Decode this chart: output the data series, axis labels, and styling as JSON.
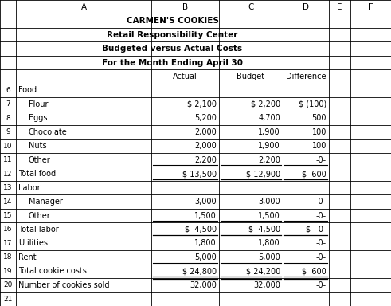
{
  "title_lines": [
    "CARMEN'S COOKIES",
    "Retail Responsibility Center",
    "Budgeted versus Actual Costs",
    "For the Month Ending April 30"
  ],
  "title_bold": [
    true,
    true,
    true,
    true
  ],
  "col_letters": [
    "",
    "A",
    "B",
    "C",
    "D",
    "E",
    "F"
  ],
  "col_header_row": [
    "",
    "Actual",
    "Budget",
    "Difference"
  ],
  "rows": [
    {
      "num": "6",
      "label": "Food",
      "actual": "",
      "budget": "",
      "diff": "",
      "indent": false,
      "total": false
    },
    {
      "num": "7",
      "label": "Flour",
      "actual": "$ 2,100",
      "budget": "$ 2,200",
      "diff": "$ (100)",
      "indent": true,
      "total": false
    },
    {
      "num": "8",
      "label": "Eggs",
      "actual": "5,200",
      "budget": "4,700",
      "diff": "500",
      "indent": true,
      "total": false
    },
    {
      "num": "9",
      "label": "Chocolate",
      "actual": "2,000",
      "budget": "1,900",
      "diff": "100",
      "indent": true,
      "total": false
    },
    {
      "num": "10",
      "label": "Nuts",
      "actual": "2,000",
      "budget": "1,900",
      "diff": "100",
      "indent": true,
      "total": false
    },
    {
      "num": "11",
      "label": "Other",
      "actual": "2,200",
      "budget": "2,200",
      "diff": "-0-",
      "indent": true,
      "total": false,
      "underline_val": true
    },
    {
      "num": "12",
      "label": "Total food",
      "actual": "$ 13,500",
      "budget": "$ 12,900",
      "diff": "$  600",
      "indent": false,
      "total": true
    },
    {
      "num": "13",
      "label": "Labor",
      "actual": "",
      "budget": "",
      "diff": "",
      "indent": false,
      "total": false
    },
    {
      "num": "14",
      "label": "Manager",
      "actual": "3,000",
      "budget": "3,000",
      "diff": "-0-",
      "indent": true,
      "total": false
    },
    {
      "num": "15",
      "label": "Other",
      "actual": "1,500",
      "budget": "1,500",
      "diff": "-0-",
      "indent": true,
      "total": false,
      "underline_val": true
    },
    {
      "num": "16",
      "label": "Total labor",
      "actual": "$  4,500",
      "budget": "$  4,500",
      "diff": "$  -0-",
      "indent": false,
      "total": true
    },
    {
      "num": "17",
      "label": "Utilities",
      "actual": "1,800",
      "budget": "1,800",
      "diff": "-0-",
      "indent": false,
      "total": false
    },
    {
      "num": "18",
      "label": "Rent",
      "actual": "5,000",
      "budget": "5,000",
      "diff": "-0-",
      "indent": false,
      "total": false,
      "underline_val": true
    },
    {
      "num": "19",
      "label": "Total cookie costs",
      "actual": "$ 24,800",
      "budget": "$ 24,200",
      "diff": "$  600",
      "indent": false,
      "total": true,
      "double_underline": true
    },
    {
      "num": "20",
      "label": "Number of cookies sold",
      "actual": "32,000",
      "budget": "32,000",
      "diff": "-0-",
      "indent": false,
      "total": false
    },
    {
      "num": "21",
      "label": "",
      "actual": "",
      "budget": "",
      "diff": "",
      "indent": false,
      "total": false
    }
  ],
  "grid_color": "#000000",
  "bg_color": "#ffffff",
  "text_color": "#000000",
  "font_size": 7.0,
  "header_fontsize": 7.5
}
